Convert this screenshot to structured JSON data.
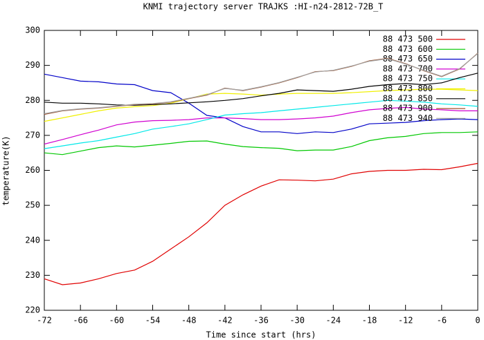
{
  "chart_data": {
    "type": "line",
    "title": "KNMI trajectory server TRAJKS :HI-n24-2812-72B_T",
    "x_label": "Time since start (hrs)",
    "y_label": "temperature(K)",
    "x": [
      -72,
      -69,
      -66,
      -63,
      -60,
      -57,
      -54,
      -51,
      -48,
      -45,
      -42,
      -39,
      -36,
      -33,
      -30,
      -27,
      -24,
      -21,
      -18,
      -15,
      -12,
      -9,
      -6,
      -3,
      0
    ],
    "xlim": [
      -72,
      0
    ],
    "xticks": [
      -72,
      -66,
      -60,
      -54,
      -48,
      -42,
      -36,
      -30,
      -24,
      -18,
      -12,
      -6,
      0
    ],
    "ylim": [
      220,
      300
    ],
    "yticks": [
      220,
      230,
      240,
      250,
      260,
      270,
      280,
      290,
      300
    ],
    "series": [
      {
        "name": "88 473 500",
        "color": "#e00000",
        "values": [
          229,
          227.3,
          227.8,
          229,
          230.5,
          231.5,
          234,
          237.5,
          241,
          245,
          250,
          253,
          255.5,
          257.3,
          257.2,
          257,
          257.5,
          259,
          259.7,
          260,
          260,
          260.3,
          260.2,
          261,
          262
        ]
      },
      {
        "name": "88 473 600",
        "color": "#00c800",
        "values": [
          265,
          264.5,
          265.5,
          266.5,
          267,
          266.7,
          267.2,
          267.7,
          268.3,
          268.4,
          267.5,
          266.8,
          266.5,
          266.3,
          265.6,
          265.8,
          265.8,
          266.8,
          268.5,
          269.3,
          269.7,
          270.5,
          270.8,
          270.8,
          271
        ]
      },
      {
        "name": "88 473 650",
        "color": "#0000c8",
        "values": [
          287.5,
          286.5,
          285.5,
          285.3,
          284.7,
          284.5,
          282.8,
          282.2,
          279.2,
          275.7,
          275,
          272.5,
          271,
          271,
          270.5,
          271,
          270.8,
          271.8,
          273.3,
          273.5,
          273.7,
          274.2,
          274.5,
          274.7,
          274.5
        ]
      },
      {
        "name": "88 473 700",
        "color": "#d000d0",
        "values": [
          267.5,
          268.8,
          270.2,
          271.5,
          273,
          273.8,
          274.2,
          274.3,
          274.5,
          275,
          275,
          274.8,
          274.5,
          274.5,
          274.7,
          275,
          275.5,
          276.5,
          277.3,
          277.7,
          278,
          277.5,
          277.3,
          277,
          277
        ]
      },
      {
        "name": "88 473 750",
        "color": "#00e8e8",
        "values": [
          266.2,
          267,
          267.8,
          268.5,
          269.5,
          270.5,
          271.8,
          272.5,
          273.3,
          274.5,
          275.8,
          276.2,
          276.5,
          277,
          277.5,
          278,
          278.5,
          279,
          279.5,
          280,
          279.8,
          279.5,
          279,
          278.7,
          278.3
        ]
      },
      {
        "name": "88 473 800",
        "color": "#f0f000",
        "values": [
          274,
          275,
          276,
          277,
          277.8,
          278.2,
          278.5,
          279.2,
          280.5,
          281.8,
          282,
          281.8,
          281.5,
          281.8,
          282,
          282,
          282,
          282.2,
          282.5,
          282.8,
          283,
          283.2,
          283.2,
          283,
          282.8
        ]
      },
      {
        "name": "88 473 850",
        "color": "#000000",
        "values": [
          279.5,
          279.2,
          279.2,
          279,
          278.7,
          278.6,
          278.8,
          279,
          279.3,
          279.6,
          280,
          280.5,
          281.3,
          282,
          283,
          282.8,
          282.6,
          283.2,
          284,
          284.5,
          284.8,
          284.5,
          285,
          286.5,
          287.8
        ]
      },
      {
        "name": "88 473 900",
        "color": "#a0522d",
        "values": [
          276,
          277,
          277.5,
          277.8,
          278.3,
          278.8,
          279,
          279.5,
          280.5,
          281.5,
          283.5,
          282.8,
          283.8,
          285,
          286.5,
          288.2,
          288.5,
          289.7,
          291.3,
          292,
          290.5,
          288.5,
          286.8,
          289,
          293.5
        ]
      },
      {
        "name": "88 473 940",
        "color": "#a0a0a0",
        "values": [
          276.2,
          277.1,
          277.6,
          277.9,
          278.4,
          278.9,
          279.1,
          279.6,
          280.6,
          281.6,
          283.4,
          282.9,
          283.9,
          285.1,
          286.6,
          288.1,
          288.6,
          289.8,
          291.2,
          291.9,
          290.4,
          288.6,
          286.9,
          289.1,
          293.4
        ]
      }
    ]
  }
}
